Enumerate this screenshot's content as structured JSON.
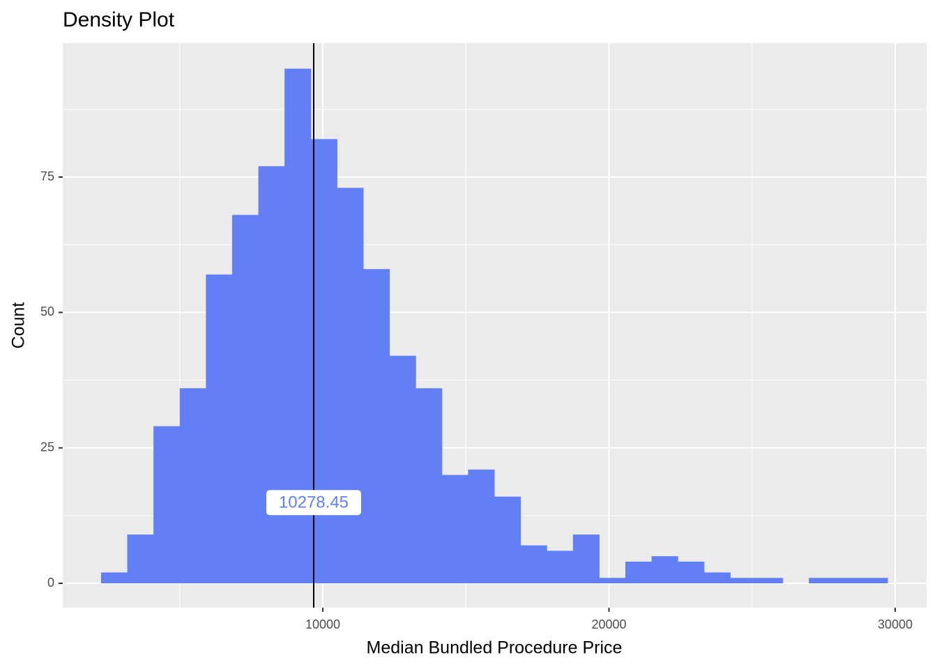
{
  "chart_data": {
    "type": "histogram",
    "title": "Density Plot",
    "x_label": "Median Bundled Procedure Price",
    "y_label": "Count",
    "bins": [
      2253,
      3169,
      4085,
      5001,
      5917,
      6833,
      7749,
      8665,
      9581,
      10497,
      11413,
      12329,
      13245,
      14161,
      15077,
      15993,
      16909,
      17825,
      18741,
      19657,
      20573,
      21489,
      22405,
      23321,
      24237,
      25153,
      26069,
      26985,
      27901,
      28817,
      29733
    ],
    "values": [
      2,
      9,
      29,
      36,
      57,
      68,
      77,
      95,
      82,
      73,
      58,
      42,
      36,
      20,
      21,
      16,
      7,
      6,
      9,
      1,
      4,
      5,
      4,
      2,
      1,
      1,
      0,
      1,
      1,
      1
    ],
    "color": "#627ff6",
    "xlim": [
      914,
      31096
    ],
    "xticks": [
      10000,
      20000,
      30000
    ],
    "x_minor_grid": [
      5000,
      15000,
      25000
    ],
    "ylim": [
      -4.5,
      99.7
    ],
    "yticks": [
      0,
      25,
      50,
      75
    ],
    "y_minor_grid": [
      12.5,
      37.5,
      62.5,
      87.5
    ],
    "grid": true,
    "vline": 9683,
    "annotation": {
      "label": "10278.45",
      "y": 14.9
    }
  }
}
